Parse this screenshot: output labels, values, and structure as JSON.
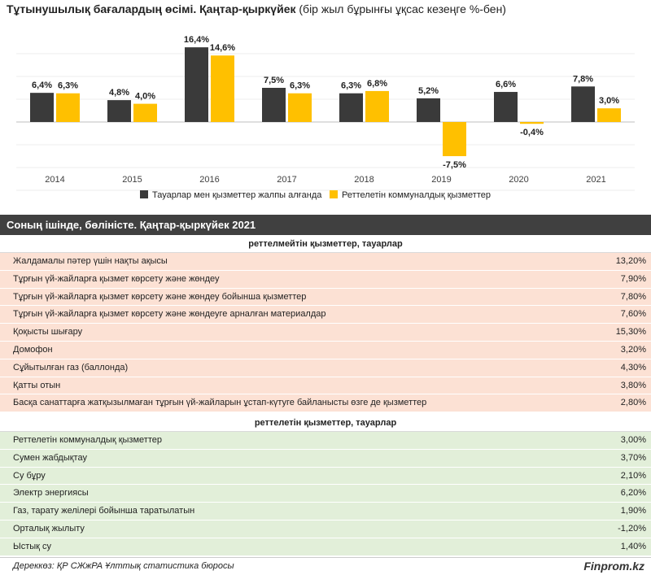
{
  "title": {
    "bold": "Тұтынушылық бағалардың өсімі. Қаңтар-қыркүйек",
    "rest": "(бір жыл бұрынғы ұқсас кезеңге %-бен)"
  },
  "chart_data": {
    "type": "bar",
    "categories": [
      "2014",
      "2015",
      "2016",
      "2017",
      "2018",
      "2019",
      "2020",
      "2021"
    ],
    "series": [
      {
        "name": "Тауарлар мен қызметтер жалпы алғанда",
        "values": [
          6.4,
          4.8,
          16.4,
          7.5,
          6.3,
          5.2,
          6.6,
          7.8
        ],
        "labels": [
          "6,4%",
          "4,8%",
          "16,4%",
          "7,5%",
          "6,3%",
          "5,2%",
          "6,6%",
          "7,8%"
        ],
        "color": "#3a3a3a"
      },
      {
        "name": "Реттелетін коммуналдық қызметтер",
        "values": [
          6.3,
          4.0,
          14.6,
          6.3,
          6.8,
          -7.5,
          -0.4,
          3.0
        ],
        "labels": [
          "6,3%",
          "4,0%",
          "14,6%",
          "6,3%",
          "6,8%",
          "-7,5%",
          "-0,4%",
          "3,0%"
        ],
        "color": "#ffc000"
      }
    ],
    "grid": true,
    "legend": "bottom-center"
  },
  "section_title": "Соның ішінде, бөліністе. Қаңтар-қыркүйек 2021",
  "unregulated": {
    "title": "реттелмейтін қызметтер, тауарлар",
    "rows": [
      {
        "label": "Жалдамалы пәтер үшін нақты ақысы",
        "value": "13,20%"
      },
      {
        "label": "Тұрғын үй-жайларға қызмет көрсету және жөндеу",
        "value": "7,90%"
      },
      {
        "label": "Тұрғын үй-жайларға қызмет көрсету және жөндеу бойынша қызметтер",
        "value": "7,80%"
      },
      {
        "label": "Тұрғын үй-жайларға қызмет көрсету және жөндеуге арналған материалдар",
        "value": "7,60%"
      },
      {
        "label": "Қоқысты шығару",
        "value": "15,30%"
      },
      {
        "label": "Домофон",
        "value": "3,20%"
      },
      {
        "label": "Сұйытылған газ (баллонда)",
        "value": "4,30%"
      },
      {
        "label": "Қатты отын",
        "value": "3,80%"
      },
      {
        "label": "Басқа санаттарға жатқызылмаған тұрғын үй-жайларын ұстап-күтуге байланысты өзге де қызметтер",
        "value": "2,80%"
      }
    ]
  },
  "regulated": {
    "title": "реттелетін қызметтер, тауарлар",
    "rows": [
      {
        "label": "Реттелетін коммуналдық қызметтер",
        "value": "3,00%"
      },
      {
        "label": "Сумен жабдықтау",
        "value": "3,70%"
      },
      {
        "label": "Су бұру",
        "value": "2,10%"
      },
      {
        "label": "Электр энергиясы",
        "value": "6,20%"
      },
      {
        "label": "Газ, тарату желілері бойынша таратылатын",
        "value": "1,90%"
      },
      {
        "label": "Орталық жылыту",
        "value": "-1,20%"
      },
      {
        "label": "Ыстық су",
        "value": "1,40%"
      }
    ]
  },
  "footer": {
    "source": "Дереккөз: ҚР СЖжРА Ұлттық статистика бюросы",
    "brand": "Finprom.kz"
  }
}
